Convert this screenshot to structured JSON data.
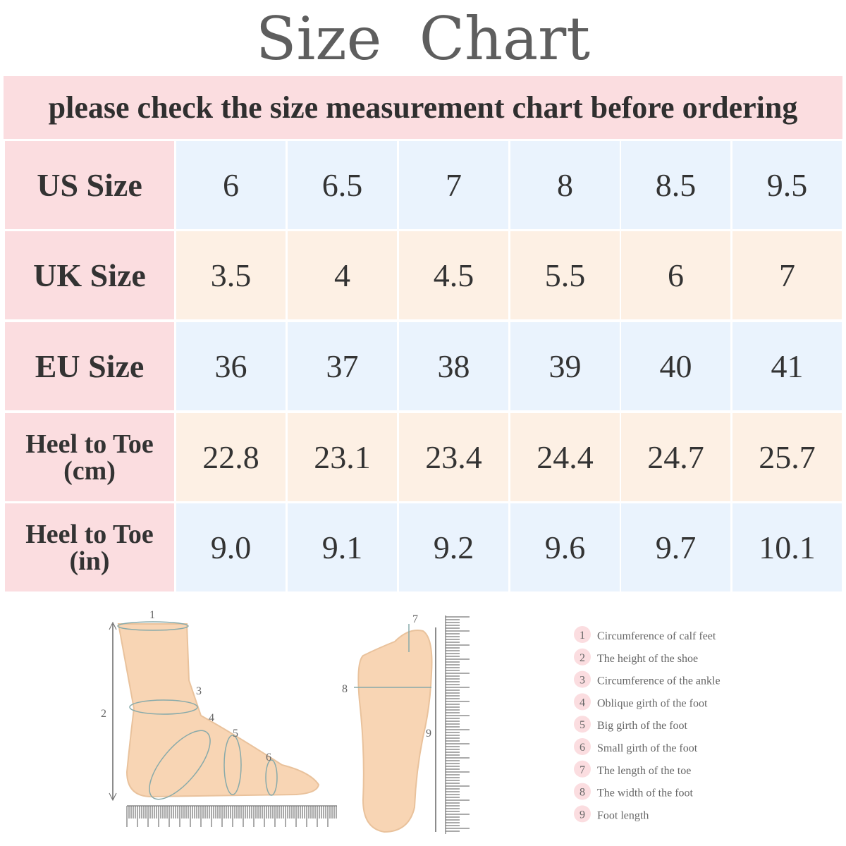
{
  "header": {
    "title": "Size  Chart",
    "subtitle": "please check the size measurement chart before ordering"
  },
  "table": {
    "rows": [
      [
        "US Size",
        "6",
        "6.5",
        "7",
        "8",
        "8.5",
        "9.5"
      ],
      [
        "UK Size",
        "3.5",
        "4",
        "4.5",
        "5.5",
        "6",
        "7"
      ],
      [
        "EU Size",
        "36",
        "37",
        "38",
        "39",
        "40",
        "41"
      ],
      [
        "Heel to Toe (cm)",
        "22.8",
        "23.1",
        "23.4",
        "24.4",
        "24.7",
        "25.7"
      ],
      [
        "Heel to Toe (in)",
        "9.0",
        "9.1",
        "9.2",
        "9.6",
        "9.7",
        "10.1"
      ]
    ]
  },
  "diagram": {
    "side_view_labels": [
      "1",
      "2",
      "3",
      "4",
      "5",
      "6"
    ],
    "top_view_labels": [
      "7",
      "8",
      "9"
    ]
  },
  "legend": {
    "items": [
      {
        "number": "1",
        "text": "Circumference of calf feet"
      },
      {
        "number": "2",
        "text": "The height of the shoe"
      },
      {
        "number": "3",
        "text": "Circumference of the ankle"
      },
      {
        "number": "4",
        "text": "Oblique girth of the foot"
      },
      {
        "number": "5",
        "text": "Big girth of the foot"
      },
      {
        "number": "6",
        "text": "Small girth of the foot"
      },
      {
        "number": "7",
        "text": "The length of the toe"
      },
      {
        "number": "8",
        "text": "The width of the foot"
      },
      {
        "number": "9",
        "text": "Foot length"
      }
    ]
  }
}
